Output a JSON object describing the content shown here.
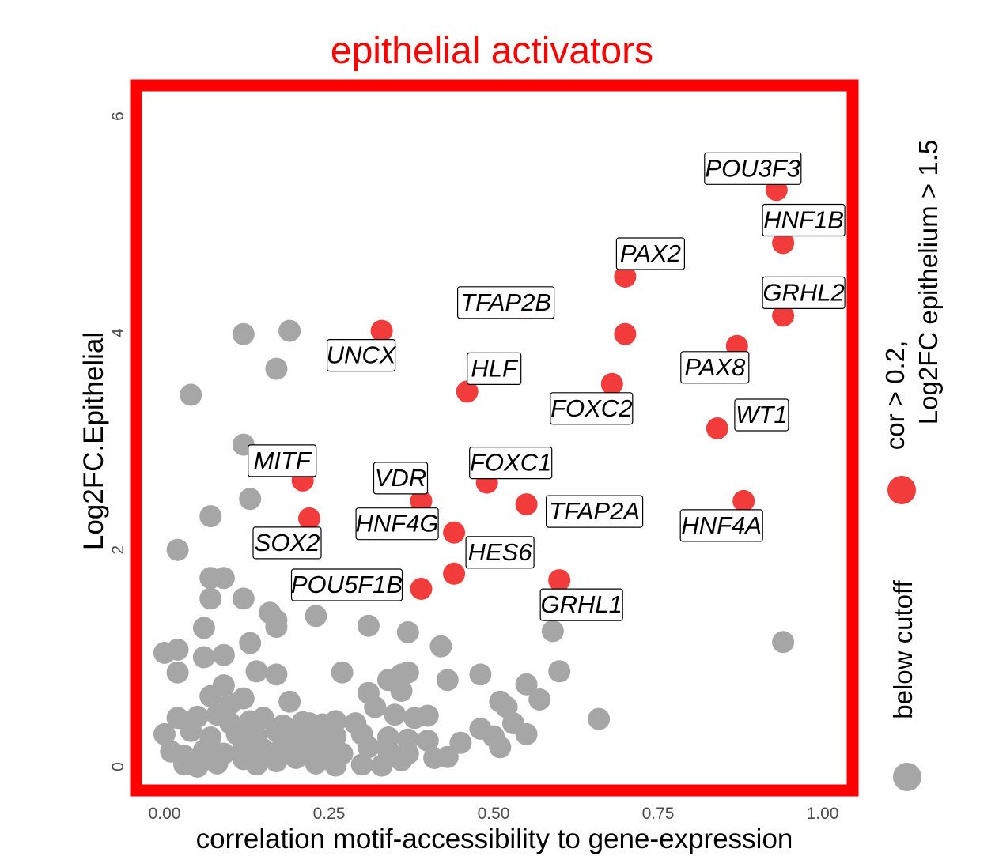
{
  "chart_data": {
    "type": "scatter",
    "title": "epithelial activators",
    "xlabel": "correlation motif-accessibility to gene-expression",
    "ylabel": "Log2FC.Epithelial",
    "xlim": [
      -0.09,
      1.08
    ],
    "ylim": [
      -0.3,
      6.3
    ],
    "x_ticks": [
      0.0,
      0.25,
      0.5,
      0.75,
      1.0
    ],
    "x_tick_labels": [
      "0.00",
      "0.25",
      "0.50",
      "0.75",
      "1.00"
    ],
    "y_ticks": [
      0,
      2,
      4,
      6
    ],
    "y_tick_labels": [
      "0",
      "2",
      "4",
      "6"
    ],
    "grid": false,
    "colors": {
      "highlight": "#f23b3b",
      "below": "#a6a6a6",
      "frame": "#ff0000",
      "title": "#ff0000"
    },
    "legend": {
      "placement": "right",
      "entries": [
        {
          "label_line1": "cor > 0.2,",
          "label_line2": "Log2FC epithelium > 1.5",
          "color": "#f23b3b"
        },
        {
          "label": "below cutoff",
          "color": "#a6a6a6"
        }
      ]
    },
    "series": [
      {
        "name": "cor > 0.2, Log2FC epithelium > 1.5",
        "points": [
          {
            "x": 0.93,
            "y": 5.32,
            "label": "POU3F3"
          },
          {
            "x": 0.94,
            "y": 4.83,
            "label": "HNF1B"
          },
          {
            "x": 0.7,
            "y": 4.52,
            "label": "PAX2"
          },
          {
            "x": 0.55,
            "y": 4.23,
            "label": "TFAP2B"
          },
          {
            "x": 0.94,
            "y": 4.16,
            "label": "GRHL2"
          },
          {
            "x": 0.33,
            "y": 4.02,
            "label": "UNCX"
          },
          {
            "x": 0.7,
            "y": 3.99,
            "label": ""
          },
          {
            "x": 0.87,
            "y": 3.88,
            "label": "PAX8"
          },
          {
            "x": 0.68,
            "y": 3.53,
            "label": "FOXC2"
          },
          {
            "x": 0.46,
            "y": 3.46,
            "label": "HLF"
          },
          {
            "x": 0.84,
            "y": 3.12,
            "label": "WT1"
          },
          {
            "x": 0.21,
            "y": 2.64,
            "label": "MITF"
          },
          {
            "x": 0.49,
            "y": 2.62,
            "label": "FOXC1"
          },
          {
            "x": 0.39,
            "y": 2.45,
            "label": "VDR"
          },
          {
            "x": 0.88,
            "y": 2.45,
            "label": "HNF4A"
          },
          {
            "x": 0.55,
            "y": 2.42,
            "label": "TFAP2A"
          },
          {
            "x": 0.22,
            "y": 2.29,
            "label": "SOX2"
          },
          {
            "x": 0.44,
            "y": 2.16,
            "label": "HNF4G"
          },
          {
            "x": 0.44,
            "y": 1.78,
            "label": "HES6"
          },
          {
            "x": 0.6,
            "y": 1.72,
            "label": "GRHL1"
          },
          {
            "x": 0.39,
            "y": 1.64,
            "label": "POU5F1B"
          }
        ]
      },
      {
        "name": "below cutoff",
        "points": [
          {
            "x": 0.12,
            "y": 3.99
          },
          {
            "x": 0.19,
            "y": 4.02
          },
          {
            "x": 0.17,
            "y": 3.67
          },
          {
            "x": 0.04,
            "y": 3.43
          },
          {
            "x": 0.12,
            "y": 2.97
          },
          {
            "x": 0.13,
            "y": 2.47
          },
          {
            "x": 0.07,
            "y": 2.31
          },
          {
            "x": 0.02,
            "y": 2.0
          },
          {
            "x": 0.07,
            "y": 1.74
          },
          {
            "x": 0.09,
            "y": 1.74
          },
          {
            "x": 0.07,
            "y": 1.55
          },
          {
            "x": 0.12,
            "y": 1.55
          },
          {
            "x": 0.16,
            "y": 1.42
          },
          {
            "x": 0.17,
            "y": 1.35
          },
          {
            "x": 0.23,
            "y": 1.39
          },
          {
            "x": 0.31,
            "y": 1.3
          },
          {
            "x": 0.37,
            "y": 1.24
          },
          {
            "x": 0.42,
            "y": 1.11
          },
          {
            "x": 0.59,
            "y": 1.25
          },
          {
            "x": 0.94,
            "y": 1.15
          },
          {
            "x": 0.06,
            "y": 1.28
          },
          {
            "x": 0.13,
            "y": 1.14
          },
          {
            "x": 0.17,
            "y": 1.29
          },
          {
            "x": 0.0,
            "y": 1.05
          },
          {
            "x": 0.02,
            "y": 1.08
          },
          {
            "x": 0.06,
            "y": 1.01
          },
          {
            "x": 0.09,
            "y": 1.03
          },
          {
            "x": 0.02,
            "y": 0.87
          },
          {
            "x": 0.14,
            "y": 0.88
          },
          {
            "x": 0.17,
            "y": 0.85
          },
          {
            "x": 0.27,
            "y": 0.87
          },
          {
            "x": 0.36,
            "y": 0.85
          },
          {
            "x": 0.37,
            "y": 0.87
          },
          {
            "x": 0.43,
            "y": 0.8
          },
          {
            "x": 0.48,
            "y": 0.85
          },
          {
            "x": 0.6,
            "y": 0.88
          },
          {
            "x": 0.55,
            "y": 0.76
          },
          {
            "x": 0.34,
            "y": 0.8
          },
          {
            "x": 0.09,
            "y": 0.75
          },
          {
            "x": 0.07,
            "y": 0.65
          },
          {
            "x": 0.12,
            "y": 0.63
          },
          {
            "x": 0.19,
            "y": 0.6
          },
          {
            "x": 0.31,
            "y": 0.68
          },
          {
            "x": 0.36,
            "y": 0.7
          },
          {
            "x": 0.57,
            "y": 0.62
          },
          {
            "x": 0.51,
            "y": 0.6
          },
          {
            "x": 0.52,
            "y": 0.55
          },
          {
            "x": 0.66,
            "y": 0.44
          },
          {
            "x": 0.02,
            "y": 0.45
          },
          {
            "x": 0.05,
            "y": 0.46
          },
          {
            "x": 0.08,
            "y": 0.48
          },
          {
            "x": 0.1,
            "y": 0.4
          },
          {
            "x": 0.13,
            "y": 0.42
          },
          {
            "x": 0.15,
            "y": 0.45
          },
          {
            "x": 0.18,
            "y": 0.38
          },
          {
            "x": 0.21,
            "y": 0.41
          },
          {
            "x": 0.24,
            "y": 0.39
          },
          {
            "x": 0.26,
            "y": 0.42
          },
          {
            "x": 0.29,
            "y": 0.4
          },
          {
            "x": 0.32,
            "y": 0.55
          },
          {
            "x": 0.35,
            "y": 0.48
          },
          {
            "x": 0.38,
            "y": 0.45
          },
          {
            "x": 0.4,
            "y": 0.47
          },
          {
            "x": 0.53,
            "y": 0.4
          },
          {
            "x": 0.55,
            "y": 0.3
          },
          {
            "x": 0.48,
            "y": 0.35
          },
          {
            "x": 0.0,
            "y": 0.3
          },
          {
            "x": 0.04,
            "y": 0.33
          },
          {
            "x": 0.07,
            "y": 0.27
          },
          {
            "x": 0.11,
            "y": 0.3
          },
          {
            "x": 0.14,
            "y": 0.28
          },
          {
            "x": 0.17,
            "y": 0.33
          },
          {
            "x": 0.2,
            "y": 0.3
          },
          {
            "x": 0.23,
            "y": 0.25
          },
          {
            "x": 0.26,
            "y": 0.28
          },
          {
            "x": 0.3,
            "y": 0.3
          },
          {
            "x": 0.34,
            "y": 0.27
          },
          {
            "x": 0.37,
            "y": 0.25
          },
          {
            "x": 0.4,
            "y": 0.24
          },
          {
            "x": 0.45,
            "y": 0.22
          },
          {
            "x": 0.5,
            "y": 0.28
          },
          {
            "x": 0.51,
            "y": 0.18
          },
          {
            "x": 0.01,
            "y": 0.14
          },
          {
            "x": 0.03,
            "y": 0.1
          },
          {
            "x": 0.06,
            "y": 0.15
          },
          {
            "x": 0.09,
            "y": 0.12
          },
          {
            "x": 0.12,
            "y": 0.18
          },
          {
            "x": 0.15,
            "y": 0.16
          },
          {
            "x": 0.18,
            "y": 0.2
          },
          {
            "x": 0.21,
            "y": 0.14
          },
          {
            "x": 0.24,
            "y": 0.16
          },
          {
            "x": 0.27,
            "y": 0.12
          },
          {
            "x": 0.31,
            "y": 0.18
          },
          {
            "x": 0.34,
            "y": 0.15
          },
          {
            "x": 0.37,
            "y": 0.12
          },
          {
            "x": 0.41,
            "y": 0.08
          },
          {
            "x": 0.43,
            "y": 0.09
          },
          {
            "x": 0.03,
            "y": 0.02
          },
          {
            "x": 0.05,
            "y": 0.0
          },
          {
            "x": 0.08,
            "y": 0.03
          },
          {
            "x": 0.12,
            "y": 0.07
          },
          {
            "x": 0.14,
            "y": 0.02
          },
          {
            "x": 0.17,
            "y": 0.05
          },
          {
            "x": 0.2,
            "y": 0.08
          },
          {
            "x": 0.23,
            "y": 0.03
          },
          {
            "x": 0.26,
            "y": 0.01
          },
          {
            "x": 0.3,
            "y": 0.02
          },
          {
            "x": 0.33,
            "y": 0.01
          },
          {
            "x": 0.36,
            "y": 0.06
          },
          {
            "x": 0.26,
            "y": 0.12
          },
          {
            "x": 0.22,
            "y": 0.4
          },
          {
            "x": 0.1,
            "y": 0.58
          }
        ]
      }
    ]
  }
}
